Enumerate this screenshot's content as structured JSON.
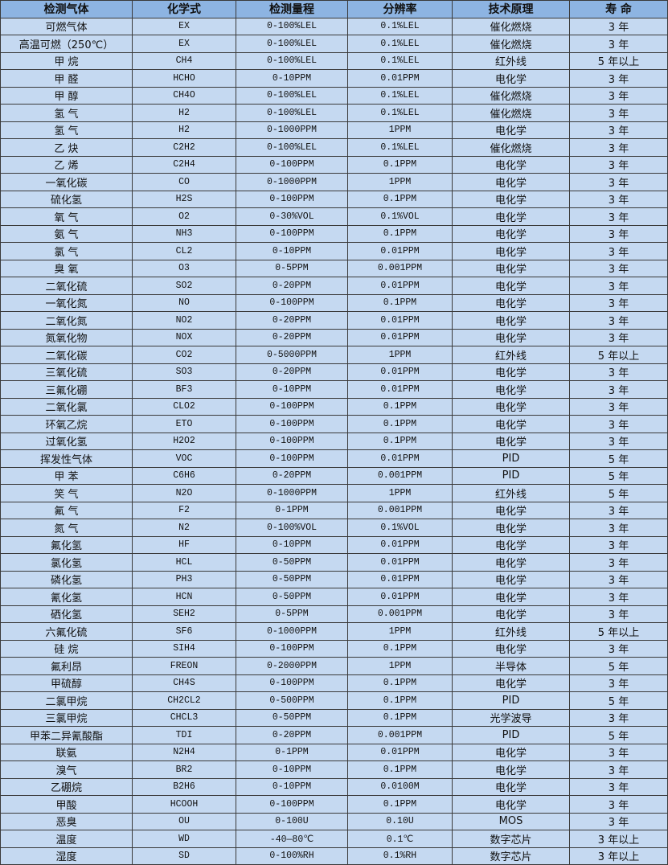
{
  "colors": {
    "header_bg": "#8db4e2",
    "row_bg": "#c5d9f1",
    "border": "#3a3a3a"
  },
  "headers": [
    "检测气体",
    "化学式",
    "检测量程",
    "分辨率",
    "技术原理",
    "寿 命"
  ],
  "rows": [
    [
      "可燃气体",
      "EX",
      "0-100%LEL",
      "0.1%LEL",
      "催化燃烧",
      "3 年"
    ],
    [
      "高温可燃（250℃）",
      "EX",
      "0-100%LEL",
      "0.1%LEL",
      "催化燃烧",
      "3 年"
    ],
    [
      "甲 烷",
      "CH4",
      "0-100%LEL",
      "0.1%LEL",
      "红外线",
      "5 年以上"
    ],
    [
      "甲 醛",
      "HCHO",
      "0-10PPM",
      "0.01PPM",
      "电化学",
      "3 年"
    ],
    [
      "甲 醇",
      "CH4O",
      "0-100%LEL",
      "0.1%LEL",
      "催化燃烧",
      "3 年"
    ],
    [
      "氢 气",
      "H2",
      "0-100%LEL",
      "0.1%LEL",
      "催化燃烧",
      "3 年"
    ],
    [
      "氢 气",
      "H2",
      "0-1000PPM",
      "1PPM",
      "电化学",
      "3 年"
    ],
    [
      "乙 炔",
      "C2H2",
      "0-100%LEL",
      "0.1%LEL",
      "催化燃烧",
      "3 年"
    ],
    [
      "乙 烯",
      "C2H4",
      "0-100PPM",
      "0.1PPM",
      "电化学",
      "3 年"
    ],
    [
      "一氧化碳",
      "CO",
      "0-1000PPM",
      "1PPM",
      "电化学",
      "3 年"
    ],
    [
      "硫化氢",
      "H2S",
      "0-100PPM",
      "0.1PPM",
      "电化学",
      "3 年"
    ],
    [
      "氧 气",
      "O2",
      "0-30%VOL",
      "0.1%VOL",
      "电化学",
      "3 年"
    ],
    [
      "氨 气",
      "NH3",
      "0-100PPM",
      "0.1PPM",
      "电化学",
      "3 年"
    ],
    [
      "氯 气",
      "CL2",
      "0-10PPM",
      "0.01PPM",
      "电化学",
      "3 年"
    ],
    [
      "臭 氧",
      "O3",
      "0-5PPM",
      "0.001PPM",
      "电化学",
      "3 年"
    ],
    [
      "二氧化硫",
      "SO2",
      "0-20PPM",
      "0.01PPM",
      "电化学",
      "3 年"
    ],
    [
      "一氧化氮",
      "NO",
      "0-100PPM",
      "0.1PPM",
      "电化学",
      "3 年"
    ],
    [
      "二氧化氮",
      "NO2",
      "0-20PPM",
      "0.01PPM",
      "电化学",
      "3 年"
    ],
    [
      "氮氧化物",
      "NOX",
      "0-20PPM",
      "0.01PPM",
      "电化学",
      "3 年"
    ],
    [
      "二氧化碳",
      "CO2",
      "0-5000PPM",
      "1PPM",
      "红外线",
      "5 年以上"
    ],
    [
      "三氧化硫",
      "SO3",
      "0-20PPM",
      "0.01PPM",
      "电化学",
      "3 年"
    ],
    [
      "三氟化硼",
      "BF3",
      "0-10PPM",
      "0.01PPM",
      "电化学",
      "3 年"
    ],
    [
      "二氧化氯",
      "CLO2",
      "0-100PPM",
      "0.1PPM",
      "电化学",
      "3 年"
    ],
    [
      "环氧乙烷",
      "ETO",
      "0-100PPM",
      "0.1PPM",
      "电化学",
      "3 年"
    ],
    [
      "过氧化氢",
      "H2O2",
      "0-100PPM",
      "0.1PPM",
      "电化学",
      "3 年"
    ],
    [
      "挥发性气体",
      "VOC",
      "0-100PPM",
      "0.01PPM",
      "PID",
      "5 年"
    ],
    [
      "甲 苯",
      "C6H6",
      "0-20PPM",
      "0.001PPM",
      "PID",
      "5 年"
    ],
    [
      "笑 气",
      "N2O",
      "0-1000PPM",
      "1PPM",
      "红外线",
      "5 年"
    ],
    [
      "氟 气",
      "F2",
      "0-1PPM",
      "0.001PPM",
      "电化学",
      "3 年"
    ],
    [
      "氮 气",
      "N2",
      "0-100%VOL",
      "0.1%VOL",
      "电化学",
      "3 年"
    ],
    [
      "氟化氢",
      "HF",
      "0-10PPM",
      "0.01PPM",
      "电化学",
      "3 年"
    ],
    [
      "氯化氢",
      "HCL",
      "0-50PPM",
      "0.01PPM",
      "电化学",
      "3 年"
    ],
    [
      "磷化氢",
      "PH3",
      "0-50PPM",
      "0.01PPM",
      "电化学",
      "3 年"
    ],
    [
      "氰化氢",
      "HCN",
      "0-50PPM",
      "0.01PPM",
      "电化学",
      "3 年"
    ],
    [
      "硒化氢",
      "SEH2",
      "0-5PPM",
      "0.001PPM",
      "电化学",
      "3 年"
    ],
    [
      "六氟化硫",
      "SF6",
      "0-1000PPM",
      "1PPM",
      "红外线",
      "5 年以上"
    ],
    [
      "硅 烷",
      "SIH4",
      "0-100PPM",
      "0.1PPM",
      "电化学",
      "3 年"
    ],
    [
      "氟利昂",
      "FREON",
      "0-2000PPM",
      "1PPM",
      "半导体",
      "5 年"
    ],
    [
      "甲硫醇",
      "CH4S",
      "0-100PPM",
      "0.1PPM",
      "电化学",
      "3 年"
    ],
    [
      "二氯甲烷",
      "CH2CL2",
      "0-500PPM",
      "0.1PPM",
      "PID",
      "5 年"
    ],
    [
      "三氯甲烷",
      "CHCL3",
      "0-50PPM",
      "0.1PPM",
      "光学波导",
      "3 年"
    ],
    [
      "甲苯二异氰酸酯",
      "TDI",
      "0-20PPM",
      "0.001PPM",
      "PID",
      "5 年"
    ],
    [
      "联氨",
      "N2H4",
      "0-1PPM",
      "0.01PPM",
      "电化学",
      "3 年"
    ],
    [
      "溴气",
      "BR2",
      "0-10PPM",
      "0.1PPM",
      "电化学",
      "3 年"
    ],
    [
      "乙硼烷",
      "B2H6",
      "0-10PPM",
      "0.0100M",
      "电化学",
      "3 年"
    ],
    [
      "甲酸",
      "HCOOH",
      "0-100PPM",
      "0.1PPM",
      "电化学",
      "3 年"
    ],
    [
      "恶臭",
      "OU",
      "0-100U",
      "0.10U",
      "MOS",
      "3 年"
    ],
    [
      "温度",
      "WD",
      "-40—80℃",
      "0.1℃",
      "数字芯片",
      "3 年以上"
    ],
    [
      "湿度",
      "SD",
      "0-100%RH",
      "0.1%RH",
      "数字芯片",
      "3 年以上"
    ]
  ]
}
